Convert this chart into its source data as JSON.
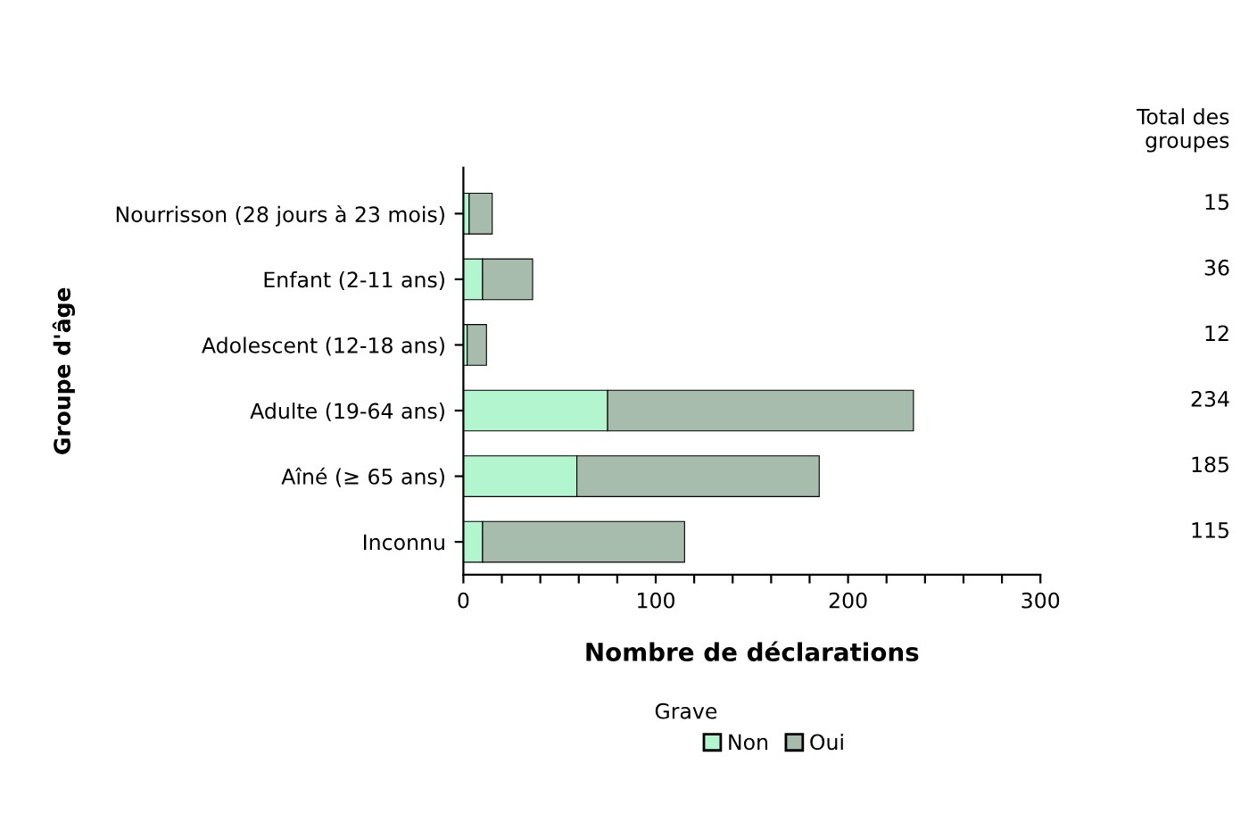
{
  "chart_data": {
    "type": "bar",
    "orientation": "horizontal",
    "stacked": true,
    "categories": [
      "Nourrisson (28 jours à 23 mois)",
      "Enfant (2-11 ans)",
      "Adolescent (12-18 ans)",
      "Adulte (19-64 ans)",
      "Aîné (≥ 65 ans)",
      "Inconnu"
    ],
    "series": [
      {
        "name": "Non",
        "color": "#b3f5cf",
        "values": [
          3,
          10,
          2,
          75,
          59,
          10
        ]
      },
      {
        "name": "Oui",
        "color": "#a8bcad",
        "values": [
          12,
          26,
          10,
          159,
          126,
          105
        ]
      }
    ],
    "annotations": [
      "Total des groupes",
      "15",
      "36",
      "12",
      "234",
      "185",
      "115"
    ],
    "xlabel": "Nombre de déclarations",
    "ylabel": "Groupe d'âge",
    "legend_title": "Grave",
    "legend": "bottom",
    "xlim": [
      0,
      300
    ],
    "xticks": [
      0,
      {
        "value": 20,
        "label": null
      },
      {
        "value": 40,
        "label": null
      },
      {
        "value": 60,
        "label": null
      },
      {
        "value": 80,
        "label": null
      },
      100,
      {
        "value": 120,
        "label": null
      },
      {
        "value": 140,
        "label": null
      },
      {
        "value": 160,
        "label": null
      },
      {
        "value": 180,
        "label": null
      },
      200,
      {
        "value": 220,
        "label": null
      },
      {
        "value": 240,
        "label": null
      },
      {
        "value": 260,
        "label": null
      },
      {
        "value": 280,
        "label": null
      },
      300
    ],
    "grid": false
  }
}
